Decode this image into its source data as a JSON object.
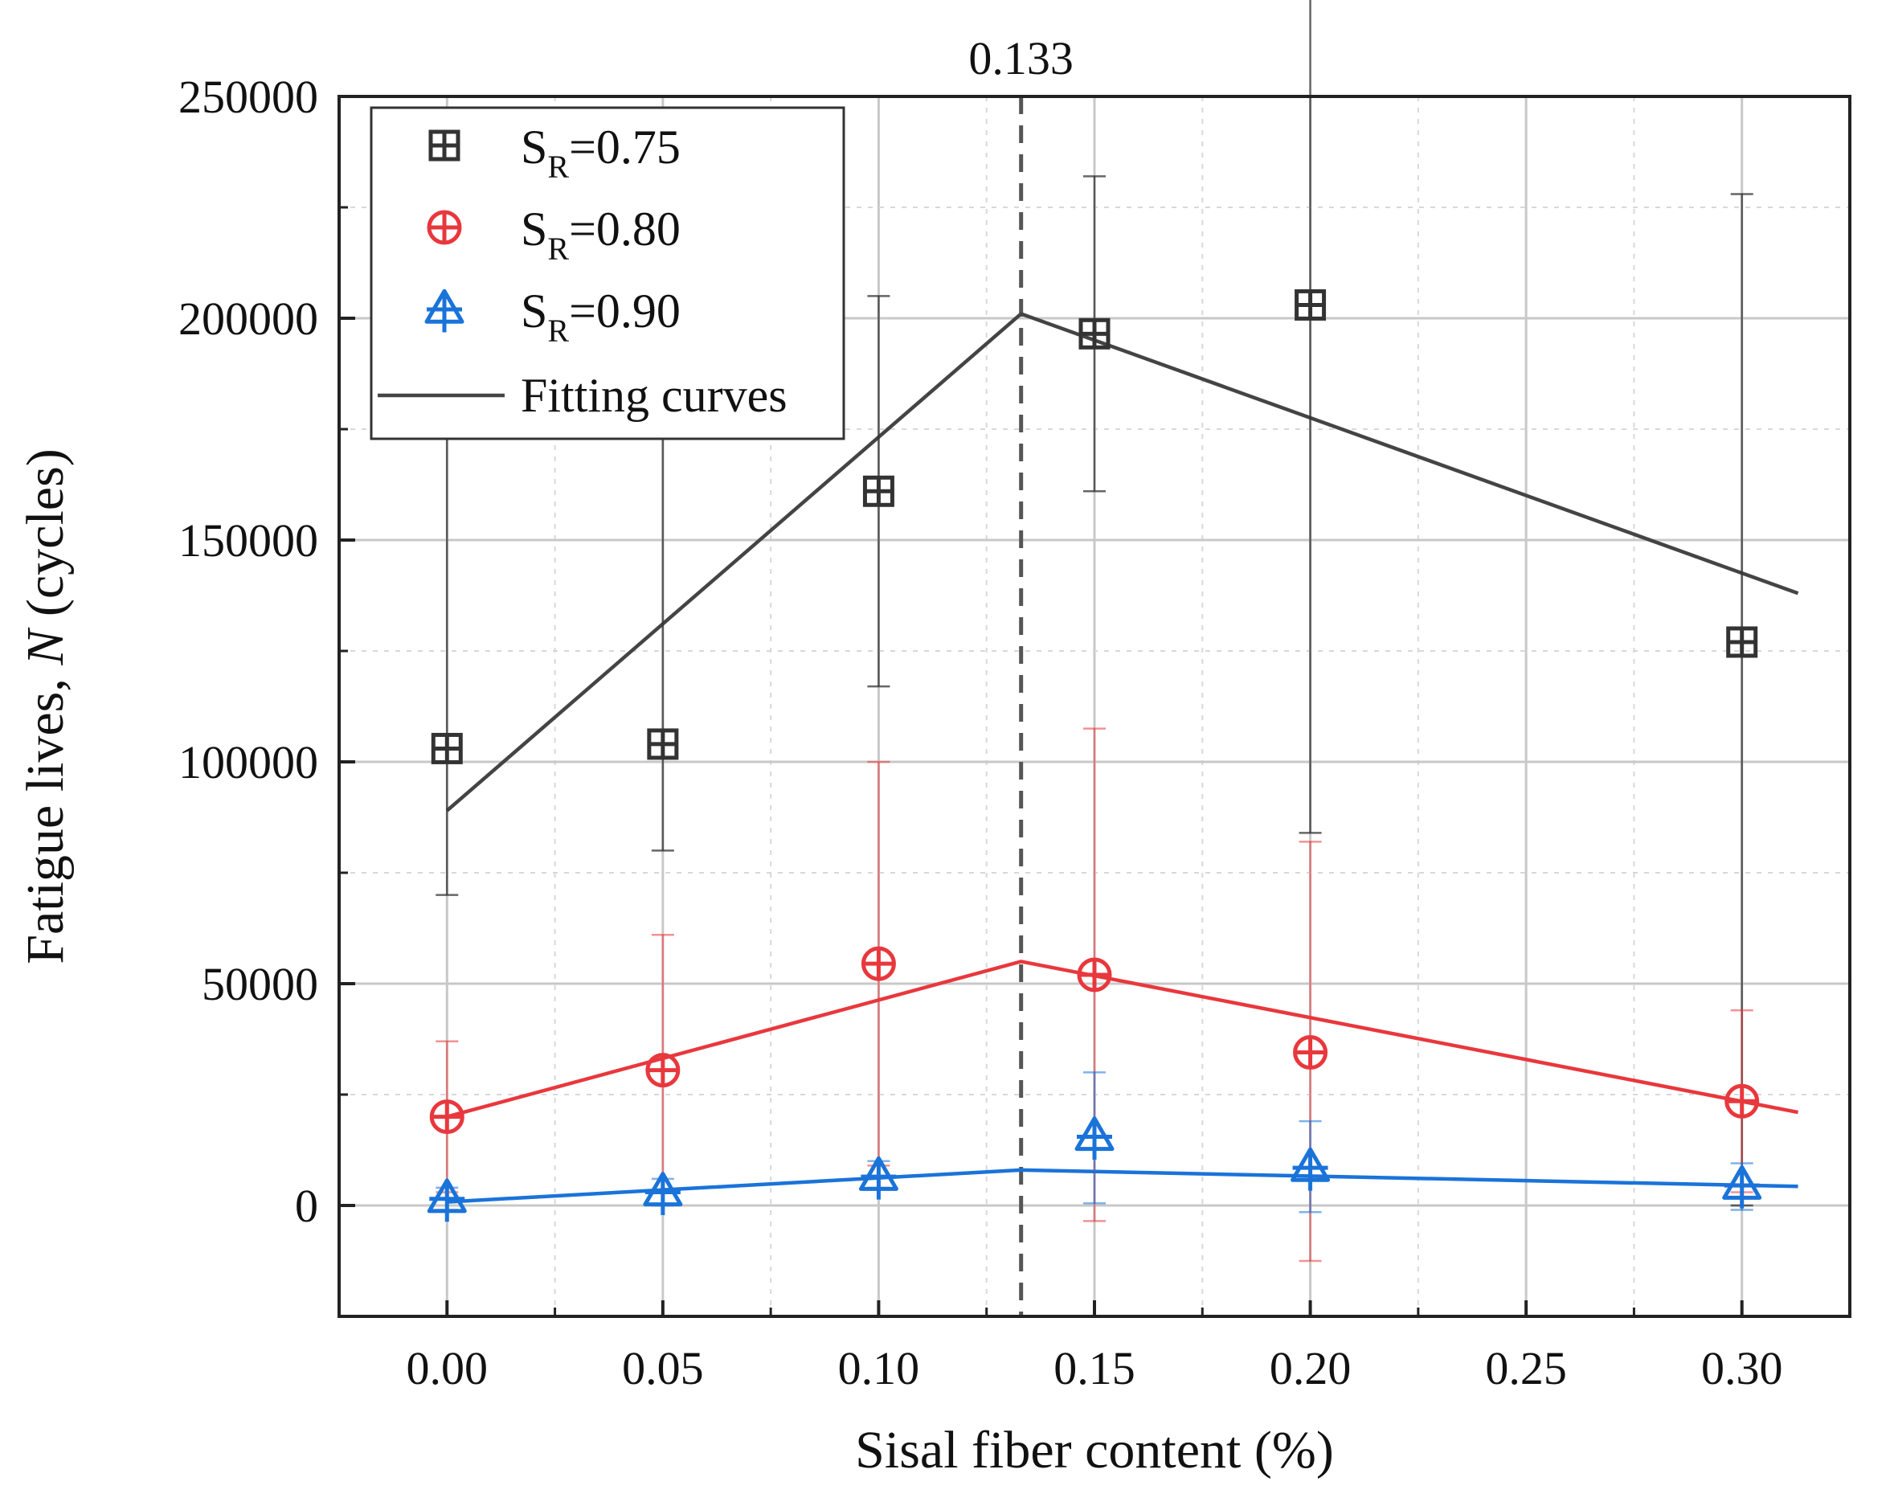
{
  "chart_data": {
    "type": "scatter",
    "title": "",
    "xlabel": "Sisal fiber content (%)",
    "ylabel_prefix": "Fatigue lives, ",
    "ylabel_italic": "N",
    "ylabel_suffix": " (cycles)",
    "xlim": [
      -0.025,
      0.325
    ],
    "ylim": [
      -25000,
      250000
    ],
    "x_ticks": [
      0.0,
      0.05,
      0.1,
      0.15,
      0.2,
      0.25,
      0.3
    ],
    "x_tick_labels": [
      "0.00",
      "0.05",
      "0.10",
      "0.15",
      "0.20",
      "0.25",
      "0.30"
    ],
    "y_ticks": [
      0,
      50000,
      100000,
      150000,
      200000,
      250000
    ],
    "y_tick_labels": [
      "0",
      "50000",
      "100000",
      "150000",
      "200000",
      "250000"
    ],
    "grid": true,
    "legend_position": "top-left",
    "reference_line": {
      "x": 0.133,
      "label": "0.133",
      "style": "dashed"
    },
    "series": [
      {
        "name": "SR=0.75",
        "legend_main": "S",
        "legend_sub": "R",
        "legend_rest": "=0.75",
        "marker": "square-plus",
        "color": "#333333",
        "x": [
          0.0,
          0.05,
          0.1,
          0.15,
          0.2,
          0.3
        ],
        "y": [
          103000,
          104000,
          161000,
          196500,
          203000,
          127000
        ],
        "err_low": [
          70000,
          80000,
          117000,
          161000,
          84000,
          0
        ],
        "err_high": [
          173000,
          176000,
          205000,
          232000,
          322000,
          228000
        ],
        "fit_x": [
          0.0,
          0.133,
          0.313
        ],
        "fit_y": [
          89000,
          201000,
          138000
        ]
      },
      {
        "name": "SR=0.80",
        "legend_main": "S",
        "legend_sub": "R",
        "legend_rest": "=0.80",
        "marker": "circle-plus",
        "color": "#e8383d",
        "x": [
          0.0,
          0.05,
          0.1,
          0.15,
          0.2,
          0.3
        ],
        "y": [
          20000,
          30500,
          54500,
          52000,
          34500,
          23500
        ],
        "err_low": [
          3000,
          0,
          9000,
          -3500,
          -12500,
          3000
        ],
        "err_high": [
          37000,
          61000,
          100000,
          107500,
          82000,
          44000
        ],
        "fit_x": [
          0.0,
          0.133,
          0.313
        ],
        "fit_y": [
          20000,
          55000,
          21000
        ]
      },
      {
        "name": "SR=0.90",
        "legend_main": "S",
        "legend_sub": "R",
        "legend_rest": "=0.90",
        "marker": "triangle-plus",
        "color": "#1a73d9",
        "x": [
          0.0,
          0.05,
          0.1,
          0.15,
          0.2,
          0.3
        ],
        "y": [
          1500,
          3000,
          6500,
          15500,
          8500,
          4500
        ],
        "err_low": [
          -1000,
          0,
          4000,
          500,
          -1500,
          -1000
        ],
        "err_high": [
          4000,
          6000,
          10000,
          30000,
          19000,
          9500
        ],
        "fit_x": [
          0.0,
          0.133,
          0.313
        ],
        "fit_y": [
          800,
          8000,
          4300
        ]
      }
    ],
    "fit_legend_label": "Fitting curves",
    "fit_color": "#444444"
  }
}
